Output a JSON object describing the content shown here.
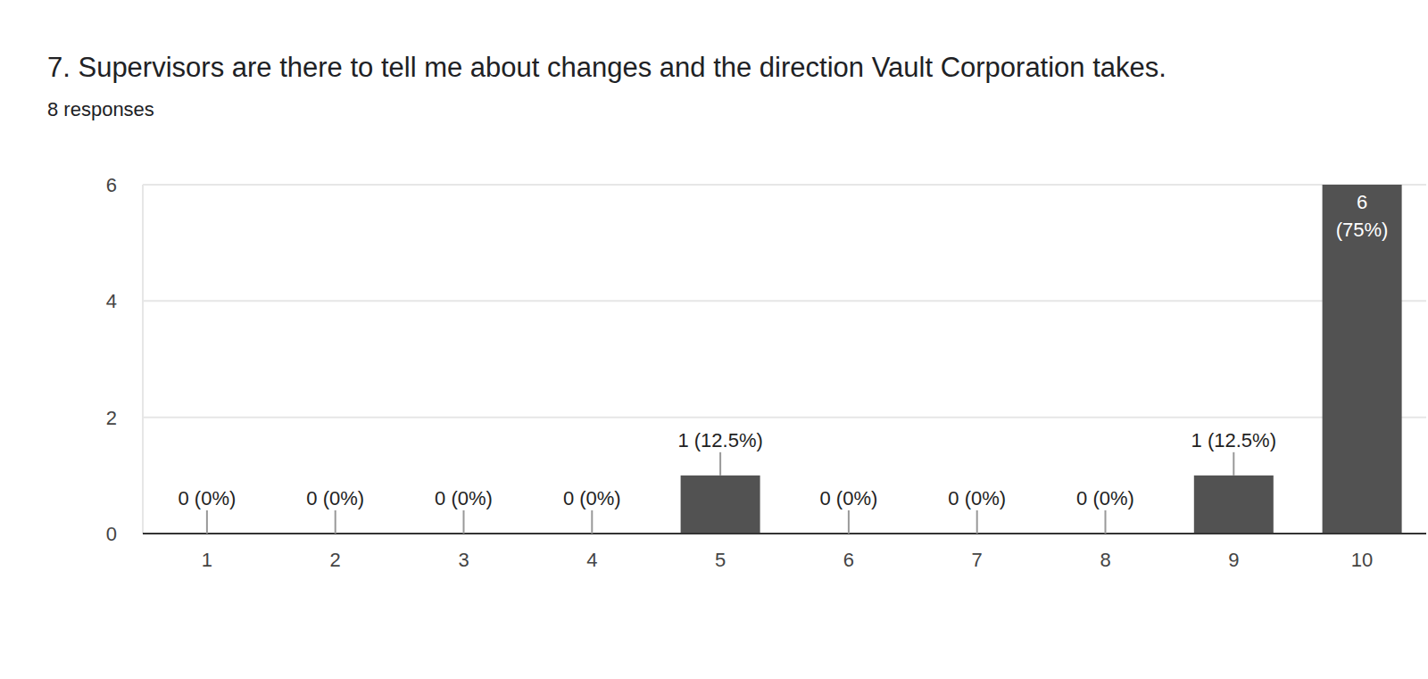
{
  "chart_data": {
    "type": "bar",
    "title": "7. Supervisors are there to tell me about changes and the direction Vault Corporation takes.",
    "subtitle": "8 responses",
    "categories": [
      "1",
      "2",
      "3",
      "4",
      "5",
      "6",
      "7",
      "8",
      "9",
      "10"
    ],
    "values": [
      0,
      0,
      0,
      0,
      1,
      0,
      0,
      0,
      1,
      6
    ],
    "value_labels": [
      "0 (0%)",
      "0 (0%)",
      "0 (0%)",
      "0 (0%)",
      "1 (12.5%)",
      "0 (0%)",
      "0 (0%)",
      "0 (0%)",
      "1 (12.5%)",
      "6 (75%)"
    ],
    "color": "#525252",
    "ylim": [
      0,
      6
    ],
    "yticks": [
      0,
      2,
      4,
      6
    ],
    "grid": true,
    "data_labels": true
  }
}
